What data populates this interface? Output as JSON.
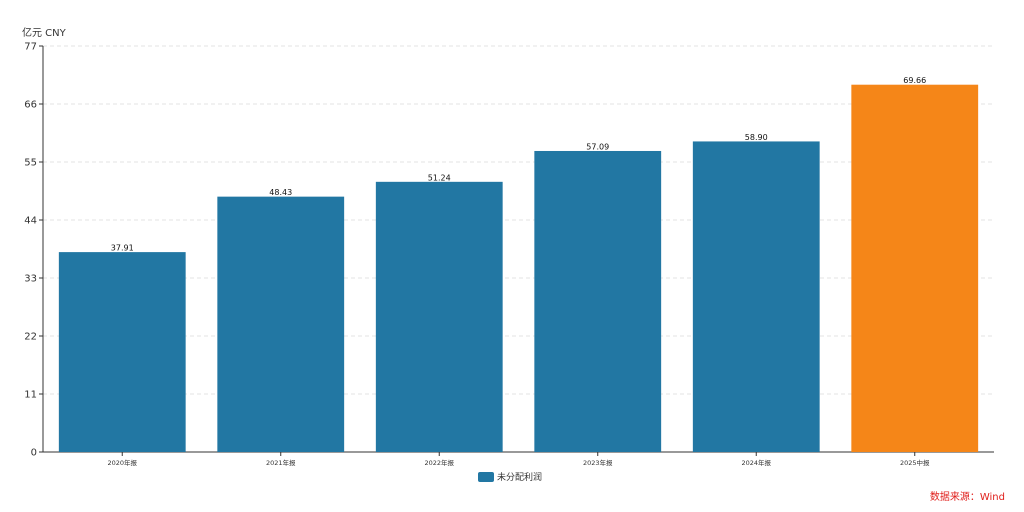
{
  "chart_data": {
    "type": "bar",
    "unit_label": "亿元  CNY",
    "categories": [
      "2020年报",
      "2021年报",
      "2022年报",
      "2023年报",
      "2024年报",
      "2025中报"
    ],
    "series": [
      {
        "name": "未分配利润",
        "values": [
          37.91,
          48.43,
          51.24,
          57.09,
          58.9,
          69.66
        ],
        "labels": [
          "37.91",
          "48.43",
          "51.24",
          "57.09",
          "58.90",
          "69.66"
        ]
      }
    ],
    "highlight_index": 5,
    "ylim": [
      0,
      77
    ],
    "yticks": [
      0,
      11,
      22,
      33,
      44,
      55,
      66,
      77
    ],
    "grid": true,
    "legend_position": "bottom-center",
    "colors": {
      "bar": "#2277a3",
      "highlight": "#f58618",
      "source": "#e0211d"
    }
  },
  "source": "数据来源：Wind"
}
